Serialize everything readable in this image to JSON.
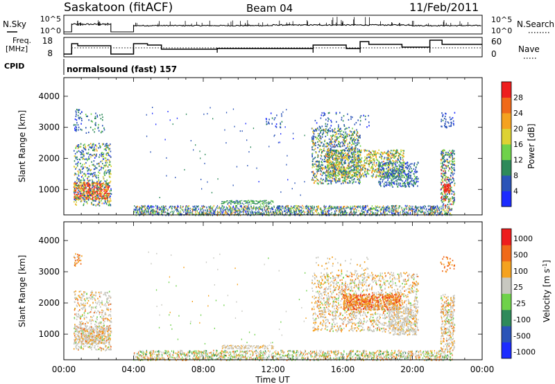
{
  "header": {
    "station": "Saskatoon (fitACF)",
    "beam": "Beam 04",
    "date": "11/Feb/2011"
  },
  "strip_labels": {
    "nsky": "N.Sky",
    "nsky_scale_top": "10^5",
    "nsky_scale_bottom": "10^0",
    "nsearch": "N.Search",
    "nsearch_scale_top": "10^5",
    "nsearch_scale_bottom": "10^0",
    "freq_line1": "Freq.",
    "freq_line2": "[MHz]",
    "freq_ticks": [
      "18",
      "8"
    ],
    "nave": "Nave",
    "nave_ticks": [
      "60",
      "0"
    ],
    "cpid": "CPID",
    "cpid_value": "normalsound (fast) 157"
  },
  "chart_data": [
    {
      "type": "heatmap",
      "name_label": "power",
      "ylabel": "Slant Range [km]",
      "yticks": [
        1000,
        2000,
        3000,
        4000
      ],
      "ylim": [
        180,
        4600
      ],
      "colorbar_label": "Power [dB]",
      "colorbar_ticks": [
        4,
        8,
        12,
        16,
        20,
        24,
        28
      ],
      "colorbar_colors": [
        "#1c2bff",
        "#2b54b8",
        "#2e8a5a",
        "#6fd24a",
        "#ddd233",
        "#f5a21f",
        "#f06a1a",
        "#ee1e1e"
      ]
    },
    {
      "type": "heatmap",
      "name_label": "velocity",
      "ylabel": "Slant Range [km]",
      "yticks": [
        1000,
        2000,
        3000,
        4000
      ],
      "ylim": [
        180,
        4600
      ],
      "colorbar_label": "Velocity [m s^-1]",
      "colorbar_ticks": [
        1000,
        500,
        100,
        25,
        -25,
        -100,
        -500,
        -1000
      ],
      "colorbar_colors": [
        "#1c2bff",
        "#2b54b8",
        "#2e8a5a",
        "#6fd24a",
        "#c8c8c0",
        "#f5a21f",
        "#f06a1a",
        "#ee1e1e"
      ]
    }
  ],
  "time_axis": {
    "xlabel": "Time UT",
    "tick_labels": [
      "00:00",
      "04:00",
      "08:00",
      "12:00",
      "16:00",
      "20:00",
      "00:00"
    ]
  }
}
